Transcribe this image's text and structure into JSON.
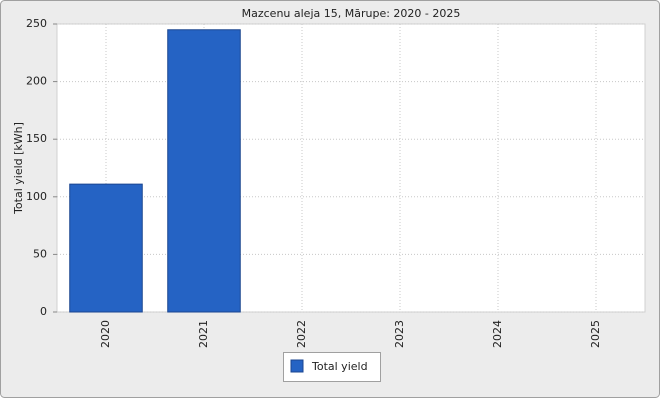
{
  "chart_data": {
    "type": "bar",
    "title": "Mazcenu aleja 15, Mārupe: 2020 - 2025",
    "y_label": "Total yield [kWh]",
    "categories": [
      "2020",
      "2021",
      "2022",
      "2023",
      "2024",
      "2025"
    ],
    "series": [
      {
        "name": "Total yield",
        "color": "#2563c4",
        "values": [
          111,
          245,
          null,
          null,
          null,
          null
        ]
      }
    ],
    "ylim": [
      0,
      250
    ],
    "yticks": [
      0,
      50,
      100,
      150,
      200,
      250
    ],
    "grid": true,
    "legend": "bottom"
  }
}
